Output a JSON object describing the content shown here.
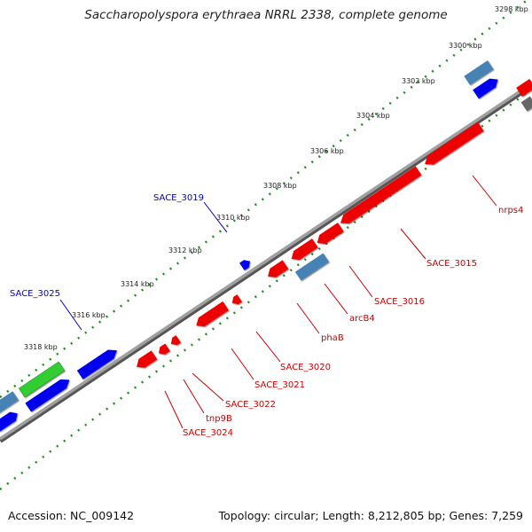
{
  "title": "Saccharopolyspora erythraea NRRL 2338, complete genome",
  "footer": {
    "accession": "Accession: NC_009142",
    "topology": "Topology: circular; Length: 8,212,805 bp; Genes: 7,259"
  },
  "colors": {
    "background": "#ffffff",
    "backbone": "#9a9a9a",
    "tick_green": "#228b22",
    "cds_forward": "#0000ee",
    "cds_reverse": "#ee0000",
    "rna": "#4682b4",
    "other": "#32cd32",
    "pseudo": "#666666",
    "label_blue": "#0000cc",
    "label_red": "#cc0000"
  },
  "ruler_labels": [
    "3298 kbp",
    "3300 kbp",
    "3302 kbp",
    "3304 kbp",
    "3306 kbp",
    "3308 kbp",
    "3310 kbp",
    "3312 kbp",
    "3314 kbp",
    "3316 kbp",
    "3318 kbp"
  ],
  "gene_labels": {
    "blue": [
      "SACE_3019",
      "SACE_3025"
    ],
    "red": [
      "nrps4",
      "SACE_3015",
      "SACE_3016",
      "arcB4",
      "phaB",
      "SACE_3020",
      "SACE_3021",
      "SACE_3022",
      "tnp9B",
      "SACE_3024"
    ]
  }
}
